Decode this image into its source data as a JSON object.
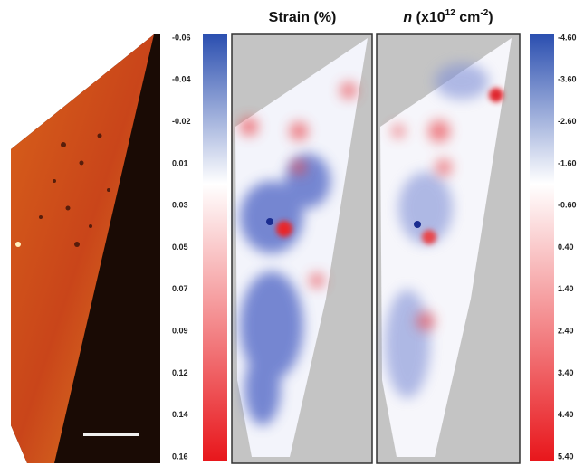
{
  "panels": {
    "strain": {
      "title": "Strain (%)",
      "colorbar_labels": [
        "-0.06",
        "-0.04",
        "-0.02",
        "0.01",
        "0.03",
        "0.05",
        "0.07",
        "0.09",
        "0.12",
        "0.14",
        "0.16"
      ]
    },
    "density": {
      "title_symbol": "n",
      "title_open": " (x10",
      "title_exp1": "12",
      "title_unit": " cm",
      "title_exp2": "-2",
      "title_close": ")",
      "colorbar_labels": [
        "-4.60",
        "-3.60",
        "-2.60",
        "-1.60",
        "-0.60",
        "0.40",
        "1.40",
        "2.40",
        "3.40",
        "4.40",
        "5.40"
      ]
    }
  }
}
